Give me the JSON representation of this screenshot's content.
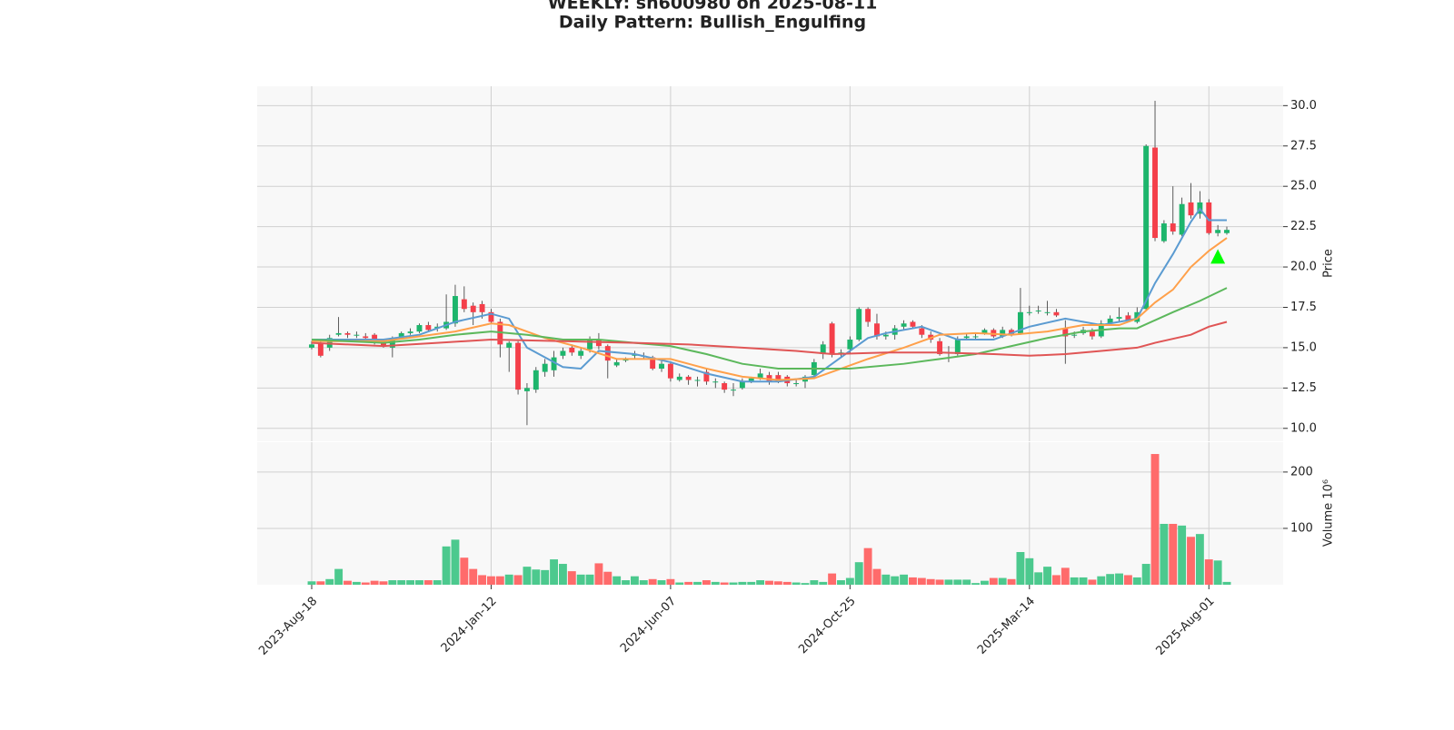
{
  "chart_data": {
    "type": "candlestick",
    "title": "WEEKLY: sh600980 on 2025-08-11",
    "subtitle": "Daily Pattern: Bullish_Engulfing",
    "ylabel": "Price",
    "categories": [
      "2023-Aug-18",
      null,
      null,
      null,
      null,
      null,
      null,
      null,
      null,
      null,
      null,
      null,
      null,
      null,
      null,
      null,
      null,
      null,
      null,
      null,
      "2024-Jan-12",
      null,
      null,
      null,
      null,
      null,
      null,
      null,
      null,
      null,
      null,
      null,
      null,
      null,
      null,
      null,
      null,
      null,
      null,
      null,
      "2024-Jun-07",
      null,
      null,
      null,
      null,
      null,
      null,
      null,
      null,
      null,
      null,
      null,
      null,
      null,
      null,
      null,
      null,
      null,
      null,
      null,
      "2024-Oct-25",
      null,
      null,
      null,
      null,
      null,
      null,
      null,
      null,
      null,
      null,
      null,
      null,
      null,
      null,
      null,
      null,
      null,
      null,
      null,
      "2025-Mar-14",
      null,
      null,
      null,
      null,
      null,
      null,
      null,
      null,
      null,
      null,
      null,
      null,
      null,
      null,
      null,
      null,
      null,
      null,
      null,
      "2025-Aug-01",
      null,
      null
    ],
    "ohlc": [
      [
        15.0,
        15.4,
        14.9,
        15.2
      ],
      [
        15.3,
        15.4,
        14.4,
        14.5
      ],
      [
        15.0,
        15.8,
        14.8,
        15.6
      ],
      [
        15.8,
        16.9,
        15.7,
        15.9
      ],
      [
        15.9,
        16.0,
        15.6,
        15.8
      ],
      [
        15.8,
        16.0,
        15.6,
        15.8
      ],
      [
        15.7,
        15.9,
        15.4,
        15.6
      ],
      [
        15.8,
        15.9,
        15.2,
        15.3
      ],
      [
        15.3,
        15.5,
        15.0,
        15.1
      ],
      [
        15.0,
        15.7,
        14.4,
        15.6
      ],
      [
        15.6,
        16.0,
        15.5,
        15.9
      ],
      [
        15.9,
        16.2,
        15.8,
        16.0
      ],
      [
        16.0,
        16.5,
        15.9,
        16.4
      ],
      [
        16.4,
        16.6,
        16.0,
        16.1
      ],
      [
        16.2,
        16.5,
        16.0,
        16.3
      ],
      [
        16.2,
        18.3,
        16.1,
        16.6
      ],
      [
        16.5,
        18.9,
        16.3,
        18.2
      ],
      [
        18.0,
        18.8,
        17.2,
        17.4
      ],
      [
        17.6,
        17.8,
        16.4,
        17.2
      ],
      [
        17.7,
        17.9,
        16.8,
        17.2
      ],
      [
        17.2,
        17.4,
        16.5,
        16.6
      ],
      [
        16.6,
        16.8,
        14.4,
        15.2
      ],
      [
        15.0,
        15.4,
        13.5,
        15.3
      ],
      [
        15.3,
        15.4,
        12.1,
        12.4
      ],
      [
        12.3,
        12.8,
        10.2,
        12.5
      ],
      [
        12.4,
        13.8,
        12.2,
        13.6
      ],
      [
        13.5,
        14.3,
        13.2,
        14.0
      ],
      [
        13.6,
        14.8,
        13.2,
        14.4
      ],
      [
        14.5,
        15.0,
        14.3,
        14.8
      ],
      [
        15.0,
        15.2,
        14.5,
        14.7
      ],
      [
        14.5,
        15.0,
        14.3,
        14.8
      ],
      [
        14.9,
        15.7,
        14.7,
        15.5
      ],
      [
        15.5,
        15.9,
        14.9,
        15.1
      ],
      [
        15.1,
        15.2,
        13.1,
        14.2
      ],
      [
        13.9,
        14.3,
        13.8,
        14.1
      ],
      [
        14.2,
        14.4,
        14.1,
        14.3
      ],
      [
        14.5,
        14.8,
        14.3,
        14.6
      ],
      [
        14.5,
        14.7,
        14.3,
        14.5
      ],
      [
        14.4,
        14.5,
        13.6,
        13.7
      ],
      [
        13.7,
        14.2,
        13.5,
        14.0
      ],
      [
        14.0,
        14.1,
        12.9,
        13.1
      ],
      [
        13.0,
        13.4,
        12.9,
        13.2
      ],
      [
        13.2,
        13.3,
        12.7,
        13.0
      ],
      [
        13.0,
        13.2,
        12.6,
        13.0
      ],
      [
        13.5,
        13.7,
        12.7,
        12.9
      ],
      [
        12.9,
        13.1,
        12.5,
        12.9
      ],
      [
        12.8,
        12.9,
        12.2,
        12.4
      ],
      [
        12.4,
        12.8,
        12.0,
        12.4
      ],
      [
        12.5,
        13.1,
        12.4,
        12.9
      ],
      [
        12.9,
        13.2,
        12.8,
        13.1
      ],
      [
        13.1,
        13.7,
        13.0,
        13.4
      ],
      [
        13.3,
        13.5,
        12.7,
        12.9
      ],
      [
        13.3,
        13.5,
        12.8,
        12.9
      ],
      [
        13.2,
        13.3,
        12.6,
        12.8
      ],
      [
        12.8,
        13.0,
        12.6,
        12.8
      ],
      [
        12.9,
        13.3,
        12.5,
        13.2
      ],
      [
        13.3,
        14.3,
        13.1,
        14.1
      ],
      [
        14.6,
        15.4,
        14.3,
        15.2
      ],
      [
        16.5,
        16.6,
        14.4,
        14.6
      ],
      [
        14.6,
        14.9,
        14.4,
        14.7
      ],
      [
        14.9,
        15.7,
        14.6,
        15.5
      ],
      [
        15.5,
        17.5,
        15.4,
        17.4
      ],
      [
        17.4,
        17.5,
        16.3,
        16.6
      ],
      [
        16.5,
        17.1,
        15.5,
        15.7
      ],
      [
        15.7,
        16.0,
        15.5,
        15.8
      ],
      [
        15.8,
        16.4,
        15.5,
        16.2
      ],
      [
        16.3,
        16.7,
        16.1,
        16.5
      ],
      [
        16.6,
        16.7,
        16.2,
        16.3
      ],
      [
        16.2,
        16.4,
        15.6,
        15.8
      ],
      [
        15.8,
        16.0,
        15.3,
        15.5
      ],
      [
        15.4,
        15.6,
        14.5,
        14.6
      ],
      [
        14.7,
        15.1,
        14.1,
        14.7
      ],
      [
        14.6,
        15.7,
        14.5,
        15.5
      ],
      [
        15.6,
        15.9,
        15.5,
        15.7
      ],
      [
        15.7,
        15.9,
        15.5,
        15.7
      ],
      [
        15.9,
        16.2,
        15.8,
        16.1
      ],
      [
        16.1,
        16.2,
        15.6,
        15.7
      ],
      [
        15.7,
        16.3,
        15.6,
        16.1
      ],
      [
        16.1,
        16.2,
        15.7,
        15.8
      ],
      [
        15.9,
        18.7,
        15.8,
        17.2
      ],
      [
        17.2,
        17.6,
        17.0,
        17.2
      ],
      [
        17.3,
        17.6,
        17.1,
        17.3
      ],
      [
        17.2,
        17.9,
        17.0,
        17.2
      ],
      [
        17.2,
        17.4,
        16.9,
        17.0
      ],
      [
        16.2,
        16.7,
        14.0,
        15.7
      ],
      [
        15.8,
        16.0,
        15.6,
        15.8
      ],
      [
        15.9,
        16.3,
        15.8,
        16.1
      ],
      [
        16.0,
        16.2,
        15.5,
        15.7
      ],
      [
        15.7,
        16.7,
        15.6,
        16.5
      ],
      [
        16.5,
        17.0,
        16.4,
        16.8
      ],
      [
        16.8,
        17.5,
        16.6,
        16.9
      ],
      [
        17.0,
        17.2,
        16.6,
        16.7
      ],
      [
        16.6,
        17.5,
        16.5,
        17.2
      ],
      [
        17.4,
        27.6,
        17.3,
        27.5
      ],
      [
        27.4,
        30.3,
        21.6,
        21.8
      ],
      [
        21.6,
        22.9,
        21.5,
        22.7
      ],
      [
        22.7,
        25.0,
        22.0,
        22.2
      ],
      [
        22.0,
        24.3,
        21.9,
        23.9
      ],
      [
        24.0,
        25.2,
        23.0,
        23.2
      ],
      [
        23.3,
        24.7,
        23.0,
        24.0
      ],
      [
        24.0,
        24.2,
        22.0,
        22.1
      ],
      [
        22.1,
        22.6,
        21.9,
        22.3
      ],
      [
        22.1,
        22.5,
        22.0,
        22.3
      ]
    ],
    "up_color": "#1db56c",
    "down_color": "#f43f4a",
    "ylim": [
      9.2,
      31.2
    ],
    "yticks": [
      {
        "value": 10,
        "label": "10.0"
      },
      {
        "value": 12.5,
        "label": "12.5"
      },
      {
        "value": 15,
        "label": "15.0"
      },
      {
        "value": 17.5,
        "label": "17.5"
      },
      {
        "value": 20,
        "label": "20.0"
      },
      {
        "value": 22.5,
        "label": "22.5"
      },
      {
        "value": 25,
        "label": "25.0"
      },
      {
        "value": 27.5,
        "label": "27.5"
      },
      {
        "value": 30,
        "label": "30.0"
      }
    ],
    "grid": true,
    "moving_averages": [
      {
        "color": "#5b9bd1",
        "x": [
          0,
          4,
          8,
          12,
          16,
          20,
          22,
          24,
          28,
          30,
          32,
          36,
          40,
          44,
          48,
          52,
          56,
          58,
          60,
          62,
          64,
          68,
          72,
          76,
          80,
          84,
          88,
          92,
          94,
          96,
          98,
          99,
          100,
          102
        ],
        "values": [
          15.5,
          15.5,
          15.5,
          15.8,
          16.6,
          17.1,
          16.8,
          15.0,
          13.8,
          13.7,
          14.8,
          14.6,
          14.1,
          13.4,
          12.9,
          12.9,
          13.2,
          14.0,
          14.8,
          15.6,
          15.9,
          16.3,
          15.5,
          15.5,
          16.3,
          16.8,
          16.4,
          16.8,
          19.0,
          20.8,
          22.8,
          23.6,
          22.9,
          22.9
        ]
      },
      {
        "color": "#ffa04a",
        "x": [
          0,
          8,
          12,
          16,
          20,
          22,
          26,
          30,
          34,
          38,
          40,
          44,
          48,
          52,
          56,
          58,
          62,
          66,
          70,
          74,
          78,
          82,
          86,
          90,
          92,
          94,
          96,
          98,
          100,
          102
        ],
        "values": [
          15.4,
          15.4,
          15.7,
          16.0,
          16.5,
          16.4,
          15.6,
          15.0,
          14.3,
          14.3,
          14.3,
          13.7,
          13.2,
          13.0,
          13.1,
          13.5,
          14.3,
          15.0,
          15.8,
          15.9,
          15.8,
          16.0,
          16.4,
          16.4,
          16.8,
          17.8,
          18.6,
          20.0,
          21.0,
          21.8
        ]
      },
      {
        "color": "#5cb85c",
        "x": [
          0,
          8,
          12,
          16,
          20,
          24,
          28,
          32,
          36,
          40,
          44,
          48,
          52,
          56,
          60,
          66,
          70,
          74,
          78,
          82,
          86,
          90,
          92,
          94,
          96,
          99,
          102
        ],
        "values": [
          15.5,
          15.3,
          15.5,
          15.8,
          16.0,
          15.8,
          15.5,
          15.5,
          15.3,
          15.1,
          14.6,
          14.0,
          13.7,
          13.7,
          13.7,
          14.0,
          14.3,
          14.6,
          15.1,
          15.6,
          16.0,
          16.2,
          16.2,
          16.7,
          17.2,
          17.9,
          18.7
        ]
      },
      {
        "color": "#e05555",
        "x": [
          0,
          8,
          14,
          20,
          28,
          36,
          42,
          48,
          54,
          58,
          64,
          70,
          76,
          80,
          84,
          88,
          92,
          94,
          98,
          100,
          102
        ],
        "values": [
          15.3,
          15.1,
          15.3,
          15.5,
          15.4,
          15.3,
          15.2,
          15.0,
          14.8,
          14.6,
          14.7,
          14.7,
          14.6,
          14.5,
          14.6,
          14.8,
          15.0,
          15.3,
          15.8,
          16.3,
          16.6
        ]
      }
    ],
    "signal": {
      "x": 101,
      "value": 20.6,
      "color": "#00ff00"
    },
    "volume": {
      "label": "Volume  10⁶",
      "ylim": [
        0,
        253
      ],
      "yticks": [
        100,
        200
      ],
      "up_color": "#4cc98e",
      "down_color": "#ff6b6b",
      "values": [
        6,
        6,
        10,
        28,
        7,
        5,
        4,
        7,
        6,
        8,
        8,
        8,
        8,
        8,
        8,
        68,
        80,
        48,
        28,
        17,
        15,
        15,
        18,
        17,
        32,
        27,
        26,
        45,
        37,
        24,
        18,
        18,
        38,
        23,
        15,
        8,
        15,
        8,
        10,
        8,
        10,
        4,
        5,
        5,
        8,
        5,
        4,
        4,
        5,
        5,
        8,
        7,
        6,
        5,
        4,
        3,
        8,
        5,
        20,
        8,
        12,
        40,
        65,
        28,
        18,
        15,
        18,
        13,
        12,
        10,
        9,
        9,
        9,
        9,
        3,
        7,
        12,
        12,
        10,
        58,
        47,
        22,
        32,
        17,
        30,
        13,
        13,
        9,
        15,
        19,
        20,
        17,
        13,
        37,
        232,
        108,
        108,
        105,
        85,
        90,
        45,
        43,
        5
      ]
    }
  }
}
